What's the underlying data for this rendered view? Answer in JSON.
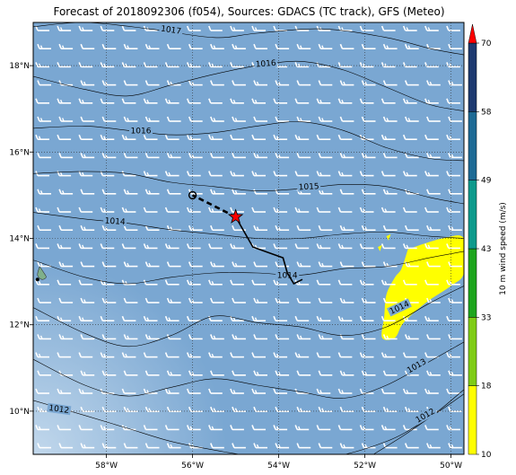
{
  "title": "Forecast of 2018092306 (f054), Sources: GDACS (TC track), GFS (Meteo)",
  "map": {
    "lon_range": [
      -59.7,
      -49.7
    ],
    "lat_range": [
      9.0,
      19.0
    ],
    "x_ticks": [
      {
        "lon": -58,
        "label": "58°W"
      },
      {
        "lon": -56,
        "label": "56°W"
      },
      {
        "lon": -54,
        "label": "54°W"
      },
      {
        "lon": -52,
        "label": "52°W"
      },
      {
        "lon": -50,
        "label": "50°W"
      }
    ],
    "y_ticks": [
      {
        "lat": 10,
        "label": "10°N"
      },
      {
        "lat": 12,
        "label": "12°N"
      },
      {
        "lat": 14,
        "label": "14°N"
      },
      {
        "lat": 16,
        "label": "16°N"
      },
      {
        "lat": 18,
        "label": "18°N"
      }
    ],
    "grid": true,
    "background_color": "#7aa7d2",
    "wind_barb_color": "#ffffff"
  },
  "isobars": [
    {
      "label": "1017",
      "points": [
        [
          -59.7,
          18.9
        ],
        [
          -58.5,
          19.0
        ],
        [
          -57,
          18.85
        ],
        [
          -55.5,
          18.65
        ],
        [
          -54.5,
          18.75
        ],
        [
          -53,
          18.85
        ],
        [
          -51.5,
          18.65
        ],
        [
          -50.5,
          18.4
        ],
        [
          -49.7,
          18.25
        ]
      ],
      "label_at": [
        -56.5,
        18.83
      ],
      "label_rot": 8
    },
    {
      "label": "1016",
      "points": [
        [
          -59.7,
          17.75
        ],
        [
          -58.5,
          17.45
        ],
        [
          -57.5,
          17.3
        ],
        [
          -56.5,
          17.55
        ],
        [
          -55.5,
          17.8
        ],
        [
          -54.5,
          18.0
        ],
        [
          -53.5,
          18.1
        ],
        [
          -52.5,
          17.9
        ],
        [
          -51.5,
          17.5
        ],
        [
          -50.5,
          17.1
        ],
        [
          -49.7,
          16.95
        ]
      ],
      "label_at": [
        -54.3,
        18.05
      ],
      "label_rot": -4
    },
    {
      "label": "1016",
      "points": [
        [
          -59.7,
          16.55
        ],
        [
          -58.5,
          16.6
        ],
        [
          -57.5,
          16.5
        ],
        [
          -56.5,
          16.4
        ],
        [
          -55.5,
          16.45
        ],
        [
          -54.5,
          16.6
        ],
        [
          -53.5,
          16.7
        ],
        [
          -52.5,
          16.5
        ],
        [
          -51.5,
          16.1
        ],
        [
          -50.5,
          15.85
        ],
        [
          -49.7,
          15.8
        ]
      ],
      "label_at": [
        -57.2,
        16.5
      ],
      "label_rot": 0
    },
    {
      "label": "1015",
      "points": [
        [
          -59.7,
          15.5
        ],
        [
          -58.5,
          15.55
        ],
        [
          -57.5,
          15.5
        ],
        [
          -56.5,
          15.3
        ],
        [
          -55.5,
          15.2
        ],
        [
          -54.5,
          15.1
        ],
        [
          -53.5,
          15.15
        ],
        [
          -52.5,
          15.25
        ],
        [
          -51.5,
          15.2
        ],
        [
          -50.5,
          14.95
        ],
        [
          -49.7,
          14.8
        ]
      ],
      "label_at": [
        -53.3,
        15.2
      ],
      "label_rot": -3
    },
    {
      "label": "1014",
      "points": [
        [
          -59.7,
          14.6
        ],
        [
          -58.5,
          14.45
        ],
        [
          -57.5,
          14.35
        ],
        [
          -56.5,
          14.2
        ],
        [
          -55.5,
          14.1
        ],
        [
          -54.5,
          14.0
        ],
        [
          -53.5,
          14.0
        ],
        [
          -52.5,
          14.1
        ],
        [
          -51.5,
          14.15
        ],
        [
          -50.5,
          14.05
        ],
        [
          -49.7,
          14.0
        ]
      ],
      "label_at": [
        -57.8,
        14.4
      ],
      "label_rot": 4
    },
    {
      "label": "1014",
      "points": [
        [
          -59.7,
          13.5
        ],
        [
          -58.5,
          13.1
        ],
        [
          -57.5,
          12.95
        ],
        [
          -56.5,
          13.1
        ],
        [
          -55.5,
          13.2
        ],
        [
          -54.5,
          13.2
        ],
        [
          -53.5,
          13.15
        ],
        [
          -52.5,
          13.3
        ],
        [
          -51.5,
          13.35
        ],
        [
          -50.5,
          13.55
        ],
        [
          -49.7,
          13.7
        ]
      ],
      "label_at": [
        -53.8,
        13.15
      ],
      "label_rot": 0
    },
    {
      "label": "1014",
      "points": [
        [
          -59.7,
          12.4
        ],
        [
          -58.5,
          11.8
        ],
        [
          -57.5,
          11.5
        ],
        [
          -56.5,
          11.75
        ],
        [
          -55.5,
          12.2
        ],
        [
          -54.5,
          12.05
        ],
        [
          -53.5,
          11.95
        ],
        [
          -52.5,
          11.75
        ],
        [
          -51.5,
          11.95
        ],
        [
          -50.5,
          12.5
        ],
        [
          -49.7,
          12.9
        ]
      ],
      "label_at": [
        -51.2,
        12.4
      ],
      "label_rot": -25
    },
    {
      "label": "1013",
      "points": [
        [
          -59.7,
          11.2
        ],
        [
          -58.5,
          10.6
        ],
        [
          -57.5,
          10.35
        ],
        [
          -56.5,
          10.55
        ],
        [
          -55.5,
          10.75
        ],
        [
          -54.5,
          10.6
        ],
        [
          -53.5,
          10.45
        ],
        [
          -52.5,
          10.3
        ],
        [
          -51.5,
          10.6
        ],
        [
          -50.5,
          11.15
        ],
        [
          -49.7,
          11.6
        ]
      ],
      "label_at": [
        -50.8,
        11.05
      ],
      "label_rot": -30
    },
    {
      "label": "1012",
      "points": [
        [
          -59.7,
          10.25
        ],
        [
          -58.5,
          9.9
        ],
        [
          -57.5,
          9.6
        ],
        [
          -56.5,
          9.3
        ],
        [
          -55.5,
          9.1
        ],
        [
          -54.5,
          8.95
        ],
        [
          -53,
          8.9
        ],
        [
          -51.5,
          9.3
        ],
        [
          -50.5,
          9.85
        ],
        [
          -49.7,
          10.4
        ]
      ],
      "label_at": [
        -59.1,
        10.05
      ],
      "label_rot": 8
    },
    {
      "label": "1012",
      "points": [
        [
          -51.8,
          9.0
        ],
        [
          -51.0,
          9.5
        ],
        [
          -50.3,
          10.0
        ],
        [
          -49.7,
          10.5
        ]
      ],
      "label_at": [
        -50.6,
        9.9
      ],
      "label_rot": -30
    }
  ],
  "track": {
    "color": "#000000",
    "past": [
      [
        -53.45,
        13.05
      ],
      [
        -53.65,
        12.95
      ],
      [
        -53.8,
        13.2
      ],
      [
        -53.9,
        13.55
      ],
      [
        -54.6,
        13.8
      ],
      [
        -55.0,
        14.5
      ]
    ],
    "forecast": [
      [
        -55.0,
        14.5
      ],
      [
        -55.5,
        14.75
      ],
      [
        -56.0,
        15.0
      ]
    ],
    "current": [
      -55.0,
      14.5
    ],
    "current_color": "#ff0000",
    "forecast_point": [
      -56.0,
      15.0
    ]
  },
  "wind_area": {
    "color": "#ffff00",
    "polygon": [
      [
        -51.0,
        13.75
      ],
      [
        -50.2,
        14.0
      ],
      [
        -49.7,
        14.0
      ],
      [
        -49.7,
        13.2
      ],
      [
        -50.0,
        12.9
      ],
      [
        -50.6,
        12.5
      ],
      [
        -51.1,
        12.05
      ],
      [
        -51.3,
        11.7
      ],
      [
        -51.6,
        11.7
      ],
      [
        -51.55,
        12.2
      ],
      [
        -51.5,
        12.7
      ],
      [
        -51.3,
        13.1
      ],
      [
        -51.15,
        13.3
      ]
    ],
    "small_patches": [
      [
        [
          -51.7,
          13.8
        ],
        [
          -51.6,
          13.85
        ],
        [
          -51.65,
          13.7
        ]
      ],
      [
        [
          -51.5,
          14.05
        ],
        [
          -51.4,
          14.1
        ],
        [
          -51.45,
          13.95
        ]
      ]
    ]
  },
  "island": {
    "color": "#7fb08a",
    "polygon": [
      [
        -59.55,
        13.35
      ],
      [
        -59.45,
        13.2
      ],
      [
        -59.4,
        13.1
      ],
      [
        -59.5,
        13.05
      ],
      [
        -59.6,
        13.15
      ]
    ],
    "dot": [
      -59.6,
      13.05
    ]
  },
  "colorbar": {
    "label": "10 m wind speed (m/s)",
    "levels": [
      {
        "value": "10",
        "color": "#ffff00"
      },
      {
        "value": "18",
        "color": "#7fcc16"
      },
      {
        "value": "33",
        "color": "#1ea51e"
      },
      {
        "value": "43",
        "color": "#0e9a8c"
      },
      {
        "value": "49",
        "color": "#1e6a95"
      },
      {
        "value": "58",
        "color": "#1e3a70"
      },
      {
        "value": "70",
        "color": "#ff0000"
      }
    ]
  }
}
